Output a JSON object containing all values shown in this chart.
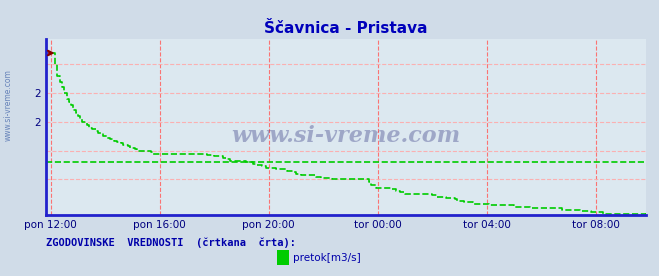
{
  "title": "Ščavnica - Pristava",
  "title_color": "#0000bb",
  "bg_color": "#d0dce8",
  "plot_bg_color": "#dce8f0",
  "axis_color": "#2222cc",
  "grid_color_v": "#ff6666",
  "grid_color_h": "#ffaaaa",
  "xlabel_ticks": [
    "pon 12:00",
    "pon 16:00",
    "pon 20:00",
    "tor 00:00",
    "tor 04:00",
    "tor 08:00"
  ],
  "tick_positions_x": [
    0,
    48,
    96,
    144,
    192,
    240
  ],
  "ytick_positions": [
    1.5,
    1.7,
    1.9,
    2.1,
    2.3
  ],
  "ytick_labels": [
    "",
    "",
    "2",
    "2",
    ""
  ],
  "ymin": 1.25,
  "ymax": 2.48,
  "xmin": -2,
  "xmax": 262,
  "hist_line_y": 1.62,
  "line_color": "#00cc00",
  "line_width": 1.2,
  "marker_color": "#880000",
  "watermark": "www.si-vreme.com",
  "watermark_color": "#000060",
  "legend_label": "pretok[m3/s]",
  "legend_text": "ZGODOVINSKE  VREDNOSTI  (črtkana  črta):",
  "legend_color": "#0000aa",
  "flow_data": [
    2.38,
    2.38,
    2.3,
    2.22,
    2.18,
    2.14,
    2.1,
    2.06,
    2.04,
    2.02,
    1.98,
    1.96,
    1.94,
    1.92,
    1.9,
    1.9,
    1.88,
    1.86,
    1.85,
    1.85,
    1.84,
    1.82,
    1.82,
    1.8,
    1.8,
    1.79,
    1.78,
    1.78,
    1.77,
    1.76,
    1.76,
    1.75,
    1.74,
    1.74,
    1.73,
    1.72,
    1.72,
    1.71,
    1.7,
    1.7,
    1.7,
    1.7,
    1.7,
    1.7,
    1.69,
    1.68,
    1.68,
    1.68,
    1.68,
    1.68,
    1.68,
    1.68,
    1.68,
    1.68,
    1.68,
    1.68,
    1.68,
    1.68,
    1.68,
    1.68,
    1.68,
    1.68,
    1.68,
    1.68,
    1.68,
    1.68,
    1.68,
    1.68,
    1.68,
    1.67,
    1.67,
    1.67,
    1.66,
    1.66,
    1.66,
    1.66,
    1.65,
    1.64,
    1.64,
    1.63,
    1.63,
    1.63,
    1.63,
    1.63,
    1.63,
    1.63,
    1.62,
    1.62,
    1.62,
    1.61,
    1.61,
    1.6,
    1.6,
    1.59,
    1.59,
    1.58,
    1.58,
    1.58,
    1.58,
    1.57,
    1.57,
    1.57,
    1.57,
    1.57,
    1.56,
    1.56,
    1.56,
    1.55,
    1.54,
    1.54,
    1.53,
    1.53,
    1.53,
    1.53,
    1.53,
    1.53,
    1.53,
    1.52,
    1.52,
    1.51,
    1.51,
    1.51,
    1.51,
    1.51,
    1.5,
    1.5,
    1.5,
    1.5,
    1.5,
    1.5,
    1.5,
    1.5,
    1.5,
    1.5,
    1.5,
    1.5,
    1.5,
    1.5,
    1.5,
    1.5,
    1.48,
    1.46,
    1.46,
    1.44,
    1.44,
    1.44,
    1.44,
    1.44,
    1.44,
    1.44,
    1.43,
    1.43,
    1.42,
    1.42,
    1.41,
    1.41,
    1.4,
    1.4,
    1.4,
    1.4,
    1.4,
    1.4,
    1.4,
    1.4,
    1.4,
    1.4,
    1.4,
    1.4,
    1.39,
    1.39,
    1.38,
    1.38,
    1.38,
    1.38,
    1.37,
    1.37,
    1.37,
    1.37,
    1.36,
    1.35,
    1.35,
    1.35,
    1.34,
    1.34,
    1.34,
    1.34,
    1.33,
    1.33,
    1.33,
    1.33,
    1.33,
    1.33,
    1.33,
    1.32,
    1.32,
    1.32,
    1.32,
    1.32,
    1.32,
    1.32,
    1.32,
    1.32,
    1.32,
    1.32,
    1.31,
    1.31,
    1.31,
    1.31,
    1.31,
    1.31,
    1.31,
    1.3,
    1.3,
    1.3,
    1.3,
    1.3,
    1.3,
    1.3,
    1.3,
    1.3,
    1.3,
    1.3,
    1.3,
    1.3,
    1.3,
    1.29,
    1.29,
    1.29,
    1.29,
    1.29,
    1.29,
    1.29,
    1.29,
    1.28,
    1.28,
    1.28,
    1.28,
    1.28,
    1.27,
    1.27,
    1.27,
    1.27,
    1.27,
    1.26,
    1.26,
    1.26,
    1.26,
    1.26,
    1.26,
    1.26,
    1.26,
    1.26,
    1.26,
    1.26,
    1.26,
    1.26,
    1.26,
    1.26,
    1.26,
    1.26,
    1.26,
    1.26,
    1.27,
    1.27
  ]
}
